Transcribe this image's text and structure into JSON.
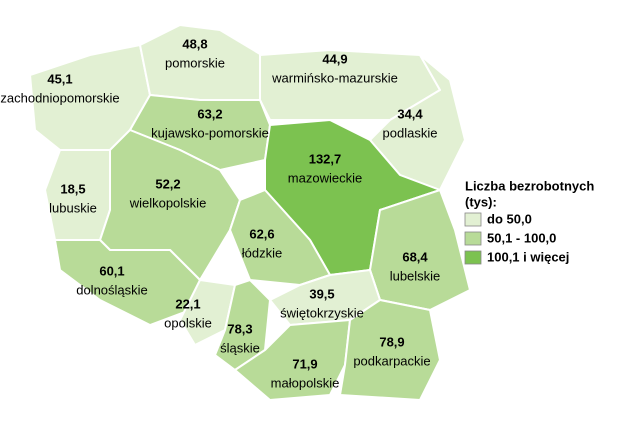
{
  "chart_data": {
    "type": "map",
    "categories": [
      "zachodniopomorskie",
      "pomorskie",
      "warmińsko-mazurskie",
      "podlaskie",
      "kujawsko-pomorskie",
      "mazowieckie",
      "lubuskie",
      "wielkopolskie",
      "łódzkie",
      "lubelskie",
      "dolnośląskie",
      "opolskie",
      "śląskie",
      "świętokrzyskie",
      "małopolskie",
      "podkarpackie"
    ],
    "values": [
      45.1,
      48.8,
      44.9,
      34.4,
      63.2,
      132.7,
      18.5,
      52.2,
      62.6,
      68.4,
      60.1,
      22.1,
      78.3,
      39.5,
      71.9,
      78.9
    ],
    "value_labels": [
      "45,1",
      "48,8",
      "44,9",
      "34,4",
      "63,2",
      "132,7",
      "18,5",
      "52,2",
      "62,6",
      "68,4",
      "60,1",
      "22,1",
      "78,3",
      "39,5",
      "71,9",
      "78,9"
    ],
    "legend": {
      "title": [
        "Liczba bezrobotnych",
        "(tys):"
      ],
      "items": [
        {
          "label": "do 50,0",
          "max": 50,
          "color": "#e2f0d3"
        },
        {
          "label": "50,1 - 100,0",
          "max": 100,
          "color": "#b8db98"
        },
        {
          "label": "100,1 i więcej",
          "max": null,
          "color": "#7cc250"
        }
      ]
    }
  }
}
